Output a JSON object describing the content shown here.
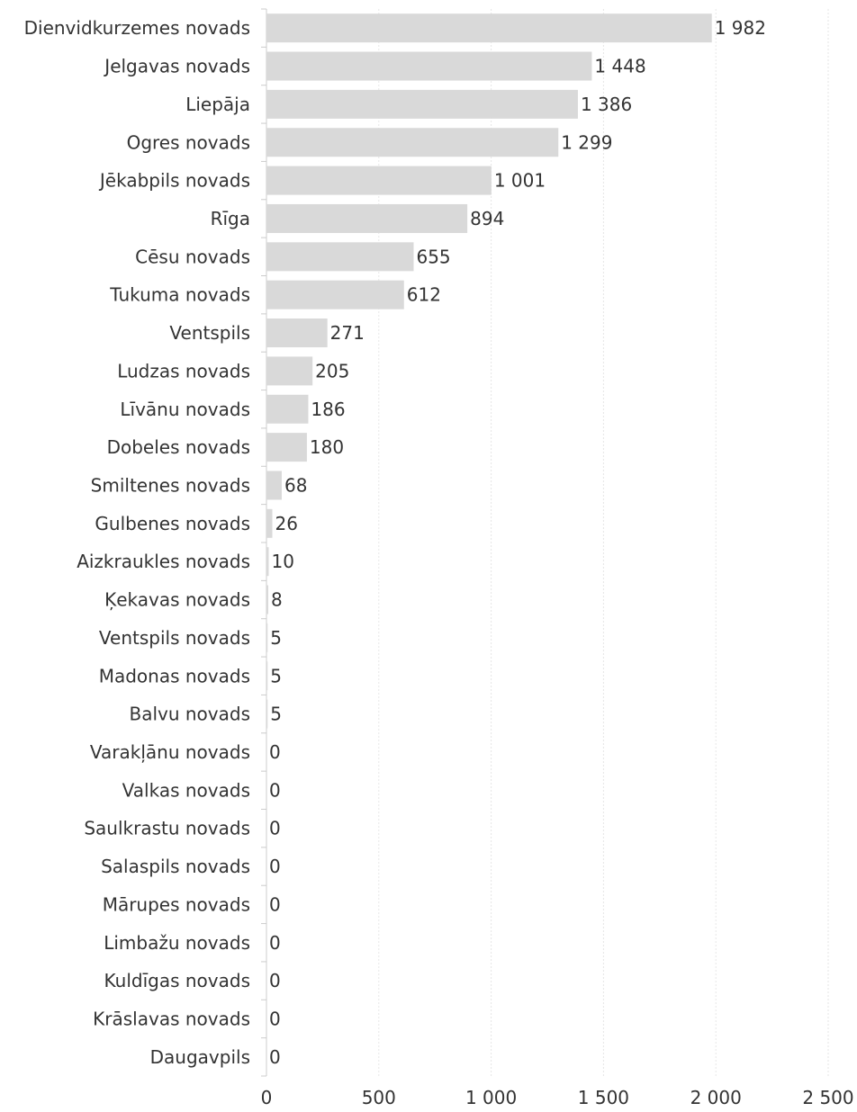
{
  "chart_data": {
    "type": "bar",
    "orientation": "horizontal",
    "title": "",
    "xlabel": "",
    "ylabel": "",
    "categories": [
      "Dienvidkurzemes novads",
      "Jelgavas novads",
      "Liepāja",
      "Ogres novads",
      "Jēkabpils novads",
      "Rīga",
      "Cēsu novads",
      "Tukuma novads",
      "Ventspils",
      "Ludzas novads",
      "Līvānu novads",
      "Dobeles novads",
      "Smiltenes novads",
      "Gulbenes novads",
      "Aizkraukles novads",
      "Ķekavas novads",
      "Ventspils novads",
      "Madonas novads",
      "Balvu novads",
      "Varakļānu novads",
      "Valkas novads",
      "Saulkrastu novads",
      "Salaspils novads",
      "Mārupes novads",
      "Limbažu novads",
      "Kuldīgas novads",
      "Krāslavas novads",
      "Daugavpils"
    ],
    "values": [
      1982,
      1448,
      1386,
      1299,
      1001,
      894,
      655,
      612,
      271,
      205,
      186,
      180,
      68,
      26,
      10,
      8,
      5,
      5,
      5,
      0,
      0,
      0,
      0,
      0,
      0,
      0,
      0,
      0
    ],
    "value_labels": [
      "1 982",
      "1 448",
      "1 386",
      "1 299",
      "1 001",
      "894",
      "655",
      "612",
      "271",
      "205",
      "186",
      "180",
      "68",
      "26",
      "10",
      "8",
      "5",
      "5",
      "5",
      "0",
      "0",
      "0",
      "0",
      "0",
      "0",
      "0",
      "0",
      "0"
    ],
    "xlim": [
      0,
      2500
    ],
    "x_ticks": [
      0,
      500,
      1000,
      1500,
      2000,
      2500
    ],
    "x_tick_labels": [
      "0",
      "500",
      "1 000",
      "1 500",
      "2 000",
      "2 500"
    ],
    "grid": true,
    "legend": "none",
    "colors": {
      "bar": "#d9d9d9",
      "text": "#333333",
      "grid": "#e6e6e6",
      "axis": "#cccccc"
    }
  }
}
